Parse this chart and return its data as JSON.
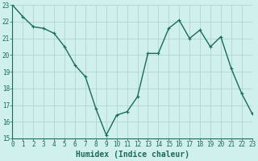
{
  "x": [
    0,
    1,
    2,
    3,
    4,
    5,
    6,
    7,
    8,
    9,
    10,
    11,
    12,
    13,
    14,
    15,
    16,
    17,
    18,
    19,
    20,
    21,
    22,
    23
  ],
  "y": [
    23.0,
    22.3,
    21.7,
    21.6,
    21.3,
    20.5,
    19.4,
    18.7,
    16.8,
    15.2,
    16.4,
    16.6,
    17.5,
    20.1,
    20.1,
    21.6,
    22.1,
    21.0,
    21.5,
    20.5,
    21.1,
    19.2,
    17.7,
    16.5
  ],
  "line_color": "#1a6b5a",
  "bg_color": "#cff0ec",
  "grid_color": "#aacfca",
  "xlabel": "Humidex (Indice chaleur)",
  "ylim": [
    15,
    23
  ],
  "xlim": [
    0,
    23
  ],
  "yticks": [
    15,
    16,
    17,
    18,
    19,
    20,
    21,
    22,
    23
  ],
  "xticks": [
    0,
    1,
    2,
    3,
    4,
    5,
    6,
    7,
    8,
    9,
    10,
    11,
    12,
    13,
    14,
    15,
    16,
    17,
    18,
    19,
    20,
    21,
    22,
    23
  ],
  "tick_fontsize": 5.5,
  "label_fontsize": 7.0,
  "line_width": 1.0,
  "marker_size": 2.5
}
